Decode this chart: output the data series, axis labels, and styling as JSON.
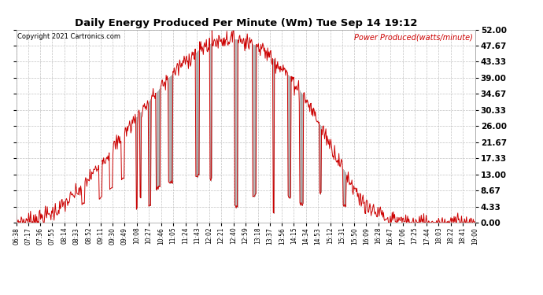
{
  "title": "Daily Energy Produced Per Minute (Wm) Tue Sep 14 19:12",
  "copyright": "Copyright 2021 Cartronics.com",
  "legend_label": "Power Produced(watts/minute)",
  "ytick_values": [
    0.0,
    4.33,
    8.67,
    13.0,
    17.33,
    21.67,
    26.0,
    30.33,
    34.67,
    39.0,
    43.33,
    47.67,
    52.0
  ],
  "ymin": 0.0,
  "ymax": 52.0,
  "background_color": "#ffffff",
  "grid_color": "#bbbbbb",
  "line_color": "#cc0000",
  "spike_color": "#888888",
  "title_color": "#000000",
  "copyright_color": "#000000",
  "legend_color": "#cc0000",
  "x_tick_labels": [
    "06:38",
    "07:17",
    "07:36",
    "07:55",
    "08:14",
    "08:33",
    "08:52",
    "09:11",
    "09:30",
    "09:49",
    "10:08",
    "10:27",
    "10:46",
    "11:05",
    "11:24",
    "11:43",
    "12:02",
    "12:21",
    "12:40",
    "12:59",
    "13:18",
    "13:37",
    "13:56",
    "14:15",
    "14:34",
    "14:53",
    "15:12",
    "15:31",
    "15:50",
    "16:09",
    "16:28",
    "16:47",
    "17:06",
    "17:25",
    "17:44",
    "18:03",
    "18:22",
    "18:41",
    "19:00"
  ]
}
